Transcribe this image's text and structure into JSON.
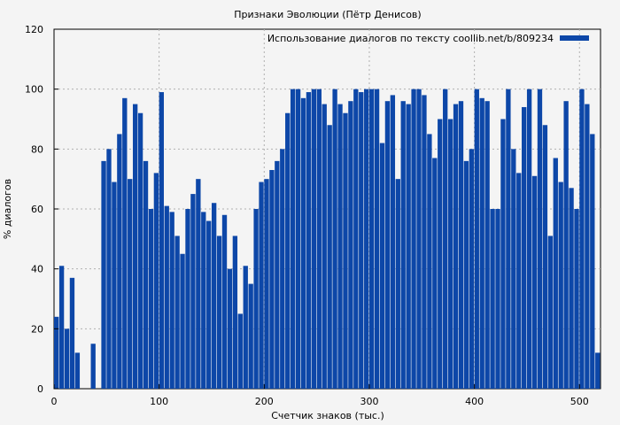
{
  "chart_data": {
    "type": "bar",
    "title": "Признаки Эволюции (Пётр Денисов)",
    "xlabel": "Счетчик знаков (тыс.)",
    "ylabel": "% диалогов",
    "xlim": [
      0,
      520
    ],
    "ylim": [
      0,
      120
    ],
    "x_ticks": [
      "0",
      "100",
      "200",
      "300",
      "400",
      "500"
    ],
    "y_ticks": [
      "0",
      "20",
      "40",
      "60",
      "80",
      "100",
      "120"
    ],
    "grid": true,
    "legend_position": "top-right",
    "colors": {
      "bar": "#0d47a8",
      "background": "#f4f4f4",
      "grid": "#b0b0b0"
    },
    "series": [
      {
        "name": "Использование диалогов по тексту coollib.net/b/809234",
        "x": [
          0,
          5,
          10,
          15,
          20,
          25,
          30,
          35,
          40,
          45,
          50,
          55,
          60,
          65,
          70,
          75,
          80,
          85,
          90,
          95,
          100,
          105,
          110,
          115,
          120,
          125,
          130,
          135,
          140,
          145,
          150,
          155,
          160,
          165,
          170,
          175,
          180,
          185,
          190,
          195,
          200,
          205,
          210,
          215,
          220,
          225,
          230,
          235,
          240,
          245,
          250,
          255,
          260,
          265,
          270,
          275,
          280,
          285,
          290,
          295,
          300,
          305,
          310,
          315,
          320,
          325,
          330,
          335,
          340,
          345,
          350,
          355,
          360,
          365,
          370,
          375,
          380,
          385,
          390,
          395,
          400,
          405,
          410,
          415,
          420,
          425,
          430,
          435,
          440,
          445,
          450,
          455,
          460,
          465,
          470,
          475,
          480,
          485,
          490,
          495,
          500,
          505,
          510,
          515,
          520
        ],
        "values": [
          24,
          41,
          20,
          37,
          12,
          0,
          0,
          15,
          0,
          76,
          80,
          69,
          85,
          97,
          70,
          95,
          92,
          76,
          60,
          72,
          99,
          61,
          59,
          51,
          45,
          60,
          65,
          70,
          59,
          56,
          62,
          51,
          58,
          40,
          51,
          25,
          41,
          35,
          60,
          69,
          70,
          73,
          76,
          80,
          92,
          100,
          100,
          97,
          99,
          100,
          100,
          95,
          88,
          100,
          95,
          92,
          96,
          100,
          99,
          100,
          100,
          100,
          82,
          96,
          98,
          70,
          96,
          95,
          100,
          100,
          98,
          85,
          77,
          90,
          100,
          90,
          95,
          96,
          76,
          80,
          100,
          97,
          96,
          60,
          60,
          90,
          100,
          80,
          72,
          94,
          100,
          71,
          100,
          88,
          51,
          77,
          69,
          96,
          67,
          60,
          100,
          95,
          85,
          12,
          6
        ]
      }
    ]
  }
}
